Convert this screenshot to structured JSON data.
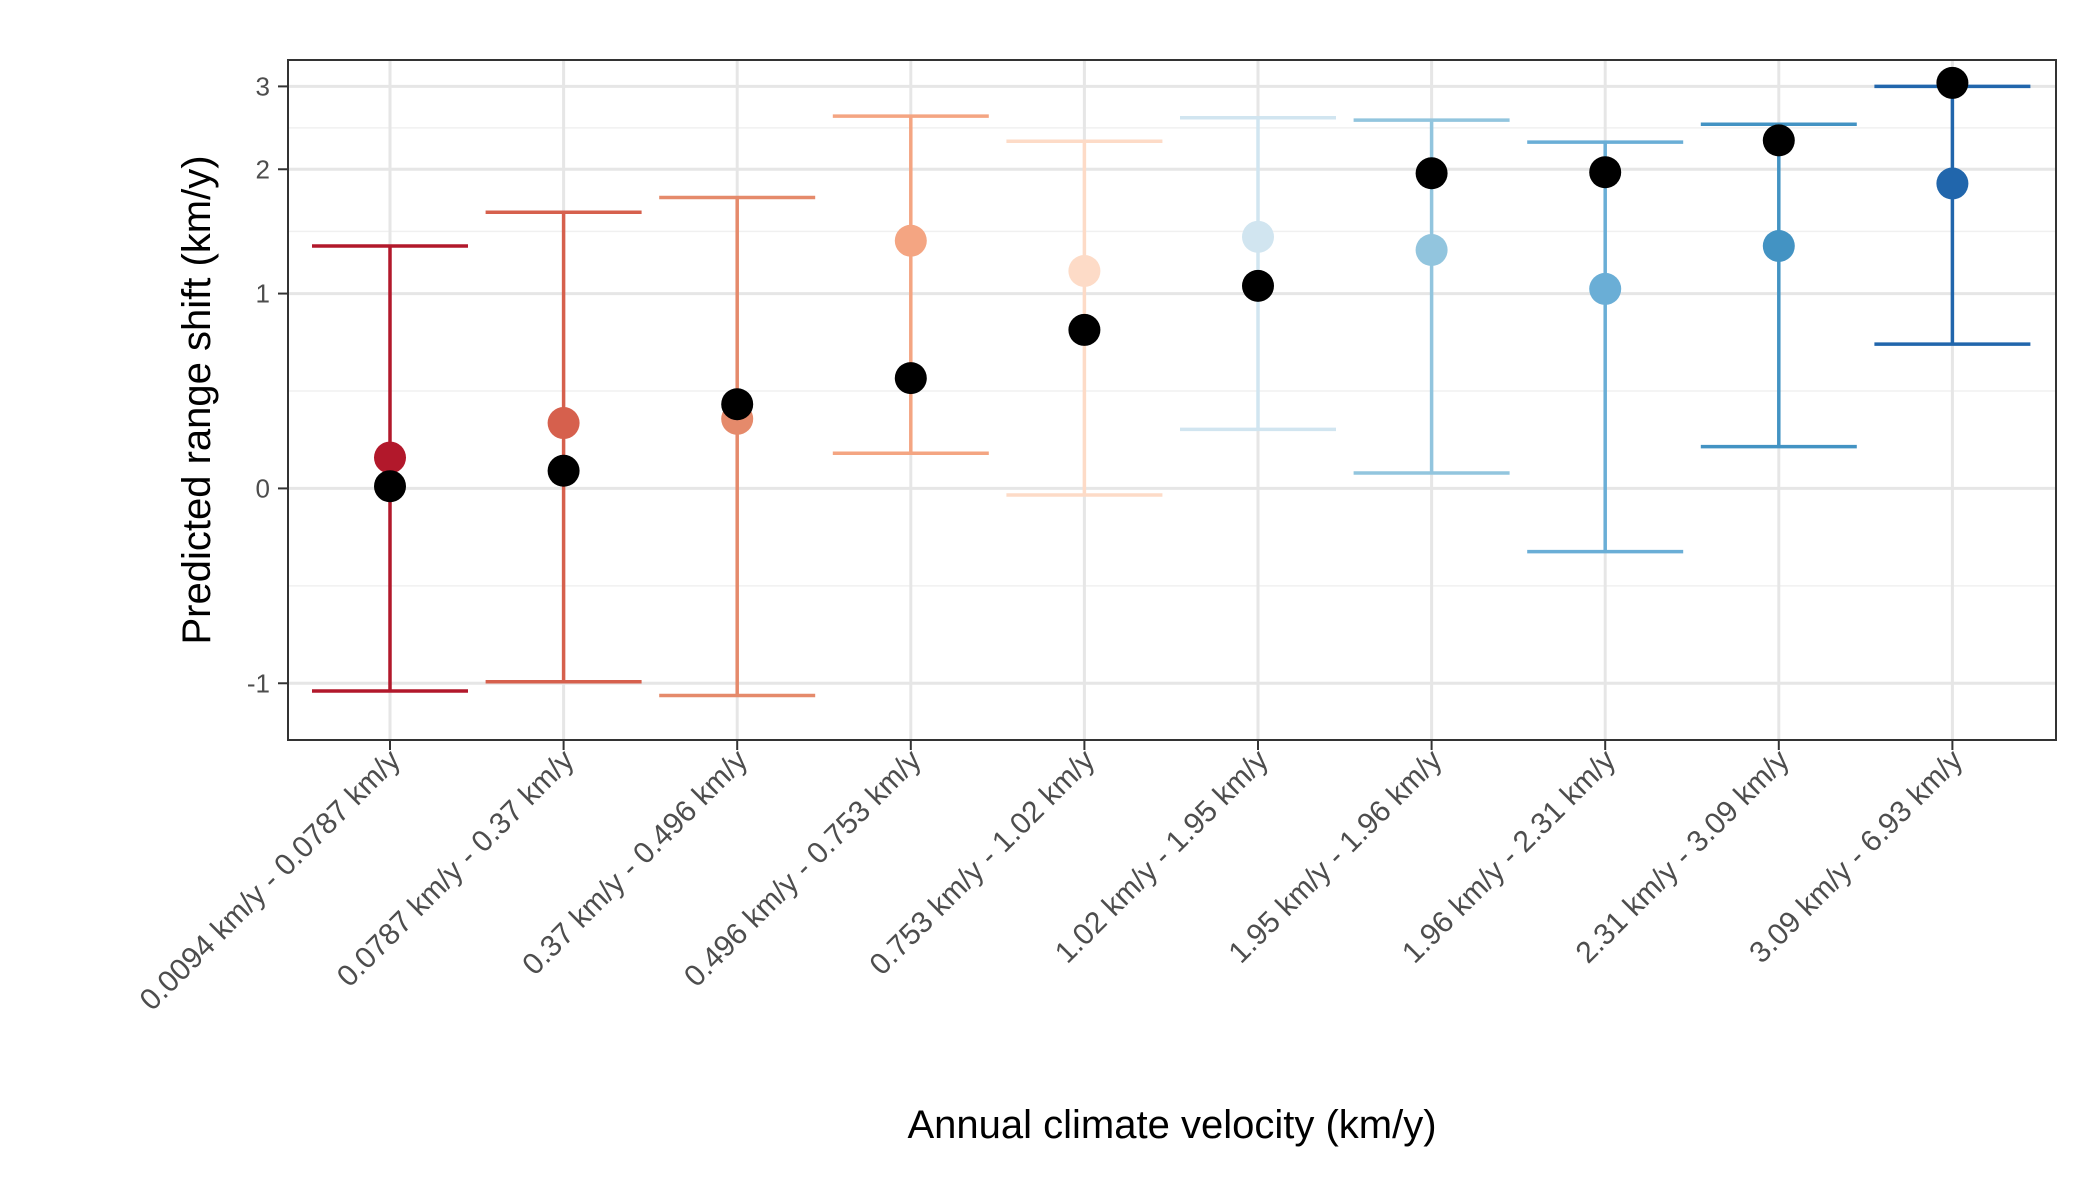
{
  "chart_data": {
    "type": "scatter",
    "title": "",
    "xlabel": "Annual climate velocity (km/y)",
    "ylabel": "Predicted range shift (km/y)",
    "y_scale": "pseudo-log (asinh)",
    "ylim": [
      -1.4,
      3.4
    ],
    "y_ticks": [
      -1,
      0,
      1,
      2,
      3
    ],
    "y_tick_labels": [
      "-1",
      "0",
      "1",
      "2",
      "3"
    ],
    "grid": true,
    "legend": "none",
    "categories": [
      "0.0094 km/y - 0.0787 km/y",
      "0.0787 km/y - 0.37 km/y",
      "0.37 km/y - 0.496 km/y",
      "0.496 km/y - 0.753 km/y",
      "0.753 km/y - 1.02 km/y",
      "1.02 km/y - 1.95 km/y",
      "1.95 km/y - 1.96 km/y",
      "1.96 km/y - 2.31 km/y",
      "2.31 km/y - 3.09 km/y",
      "3.09 km/y - 6.93 km/y"
    ],
    "colors": [
      "#b2182b",
      "#d6604d",
      "#e58a6b",
      "#f4a582",
      "#fddbc7",
      "#d1e5f0",
      "#92c5de",
      "#6aaed6",
      "#4393c3",
      "#2166ac"
    ],
    "predicted": [
      0.14,
      0.3,
      0.32,
      1.37,
      1.15,
      1.4,
      1.3,
      1.03,
      1.33,
      1.86
    ],
    "ci_lower": [
      -1.05,
      -0.99,
      -1.08,
      0.16,
      -0.03,
      0.27,
      0.07,
      -0.29,
      0.19,
      0.7
    ],
    "ci_upper": [
      1.33,
      1.6,
      1.73,
      2.6,
      2.3,
      2.58,
      2.55,
      2.29,
      2.5,
      3.0
    ],
    "observed": [
      0.01,
      0.08,
      0.39,
      0.52,
      0.78,
      1.05,
      1.96,
      1.97,
      2.31,
      3.05
    ],
    "observed_color": "#000000"
  }
}
